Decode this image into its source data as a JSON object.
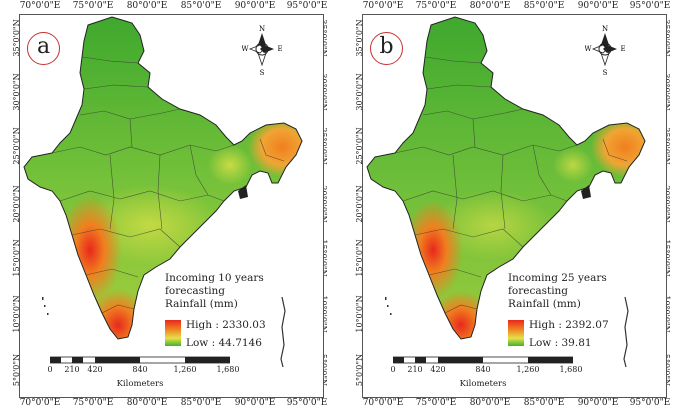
{
  "panels": [
    {
      "letter": "a",
      "legend": {
        "line1": "Incoming 10 years",
        "line2": "forecasting",
        "line3": "Rainfall (mm)",
        "high": "High : 2330.03",
        "low": "Low : 44.7146"
      }
    },
    {
      "letter": "b",
      "legend": {
        "line1": "Incoming 25 years",
        "line2": "forecasting",
        "line3": "Rainfall (mm)",
        "high": "High : 2392.07",
        "low": "Low : 39.81"
      }
    }
  ],
  "lon_ticks": [
    "70°0'0\"E",
    "75°0'0\"E",
    "80°0'0\"E",
    "85°0'0\"E",
    "90°0'0\"E",
    "95°0'0\"E"
  ],
  "lat_ticks": [
    "35°0'0\"N",
    "30°0'0\"N",
    "25°0'0\"N",
    "20°0'0\"N",
    "15°0'0\"N",
    "10°0'0\"N",
    "5°0'0\"N"
  ],
  "compass": {
    "n": "N",
    "s": "S",
    "e": "E",
    "w": "W"
  },
  "scale": {
    "labels": [
      "0",
      "210",
      "420",
      "840",
      "1,260",
      "1,680"
    ],
    "unit": "Kilometers"
  },
  "colors": {
    "high": "#e8281e",
    "mid": "#e6e04a",
    "low": "#3fb22d",
    "frame": "#555555",
    "panel_circle": "#c8322f"
  }
}
